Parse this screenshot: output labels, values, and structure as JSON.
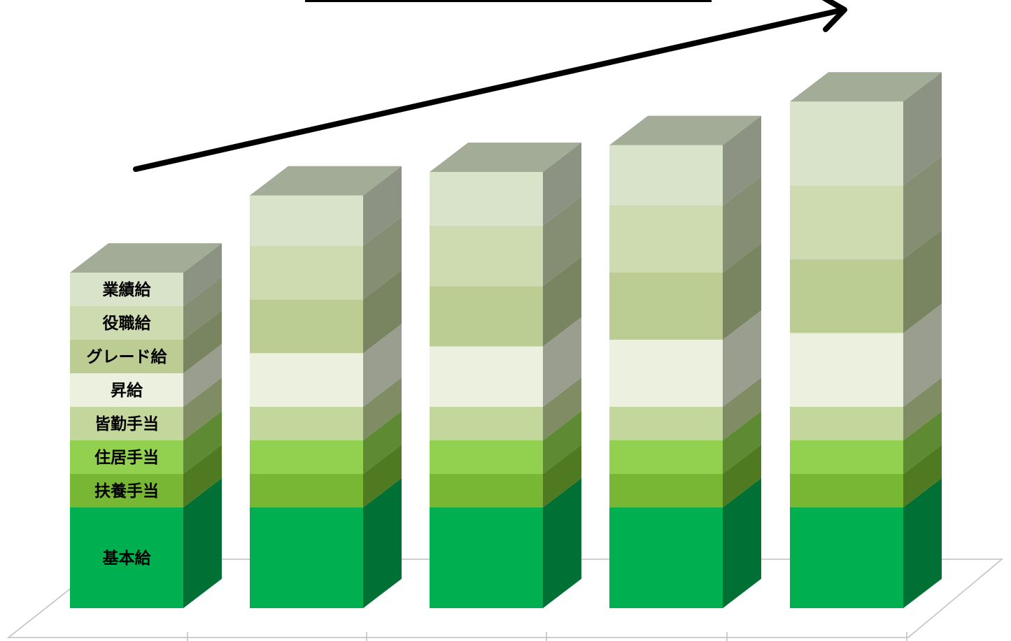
{
  "chart_data": {
    "type": "bar",
    "stacked": true,
    "three_d": true,
    "categories": [
      "",
      "",
      "",
      "",
      ""
    ],
    "series": [
      {
        "name": "基本給",
        "values": [
          3.0,
          3.0,
          3.0,
          3.0,
          3.0
        ],
        "color": "#00b050",
        "side_color": "#007034"
      },
      {
        "name": "扶養手当",
        "values": [
          1.0,
          1.0,
          1.0,
          1.0,
          1.0
        ],
        "color": "#77b733",
        "side_color": "#4f7a21"
      },
      {
        "name": "住居手当",
        "values": [
          1.0,
          1.0,
          1.0,
          1.0,
          1.0
        ],
        "color": "#92d050",
        "side_color": "#5e8a33"
      },
      {
        "name": "皆勤手当",
        "values": [
          1.0,
          1.0,
          1.0,
          1.0,
          1.0
        ],
        "color": "#c3d69b",
        "side_color": "#7f8c64"
      },
      {
        "name": "昇給",
        "values": [
          1.0,
          1.6,
          1.8,
          2.0,
          2.2
        ],
        "color": "#ebf1de",
        "side_color": "#999e8f"
      },
      {
        "name": "グレード給",
        "values": [
          1.0,
          1.6,
          1.8,
          2.0,
          2.2
        ],
        "color": "#bccd94",
        "side_color": "#798460"
      },
      {
        "name": "役職給",
        "values": [
          1.0,
          1.6,
          1.8,
          2.0,
          2.2
        ],
        "color": "#cedbb0",
        "side_color": "#858e72"
      },
      {
        "name": "業績給",
        "values": [
          1.0,
          1.5,
          1.6,
          1.8,
          2.5
        ],
        "color": "#d9e3c9",
        "side_color": "#8c9382"
      }
    ],
    "top_color": "#a3ac96",
    "legend": "labels-inside-first-bar",
    "trend_arrow": true,
    "title": "",
    "xlabel": "",
    "ylabel": "",
    "grid": false
  }
}
